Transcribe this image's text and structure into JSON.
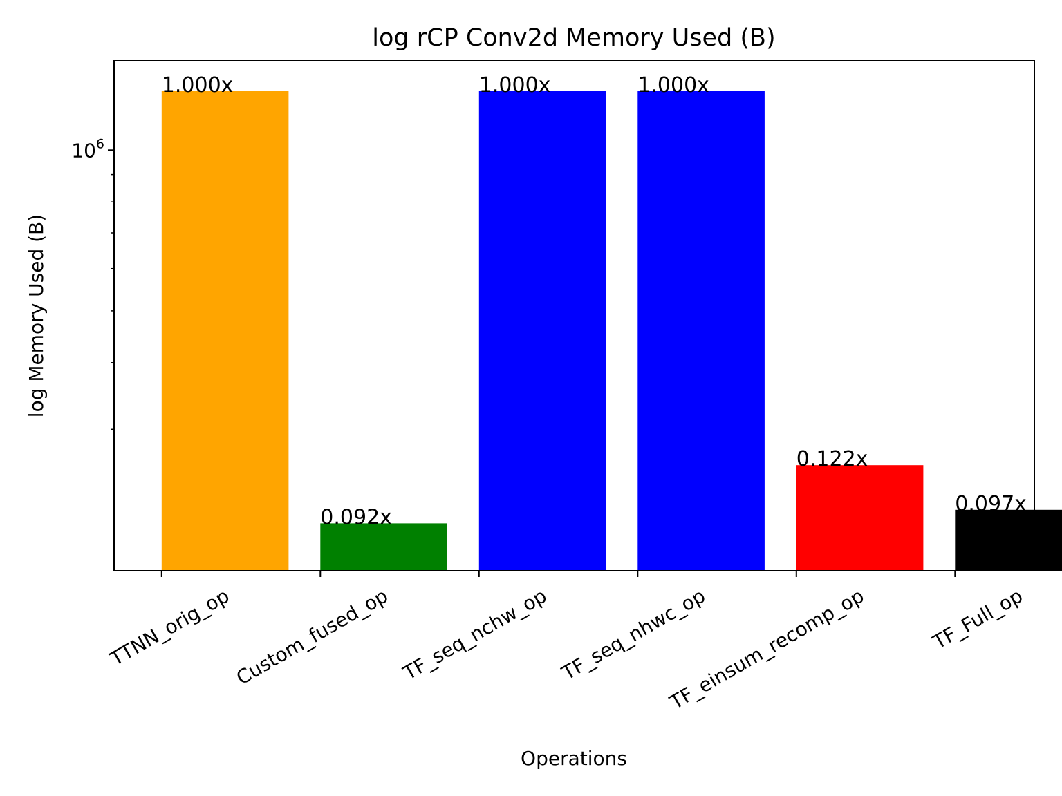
{
  "chart_data": {
    "type": "bar",
    "title": "log rCP Conv2d Memory Used (B)",
    "xlabel": "Operations",
    "ylabel": "log Memory Used (B)",
    "yscale": "log",
    "ylim": [
      163000,
      1470000
    ],
    "y_major_tick_labels": [
      {
        "value": 1000000,
        "label": "10",
        "exponent": "6"
      }
    ],
    "y_minor_ticks": [
      300000,
      400000,
      500000,
      600000,
      700000,
      800000,
      900000
    ],
    "grid": false,
    "legend": "none",
    "categories": [
      "TTNN_orig_op",
      "Custom_fused_op",
      "TF_seq_nchw_op",
      "TF_seq_nhwc_op",
      "TF_einsum_recomp_op",
      "TF_Full_op"
    ],
    "values": [
      1290000,
      200000,
      1290000,
      1290000,
      257000,
      212000
    ],
    "data_labels": [
      "1.000x",
      "0.092x",
      "1.000x",
      "1.000x",
      "0.122x",
      "0.097x"
    ],
    "colors": [
      "#ffa500",
      "#008000",
      "#0000ff",
      "#0000ff",
      "#ff0000",
      "#000000"
    ]
  }
}
